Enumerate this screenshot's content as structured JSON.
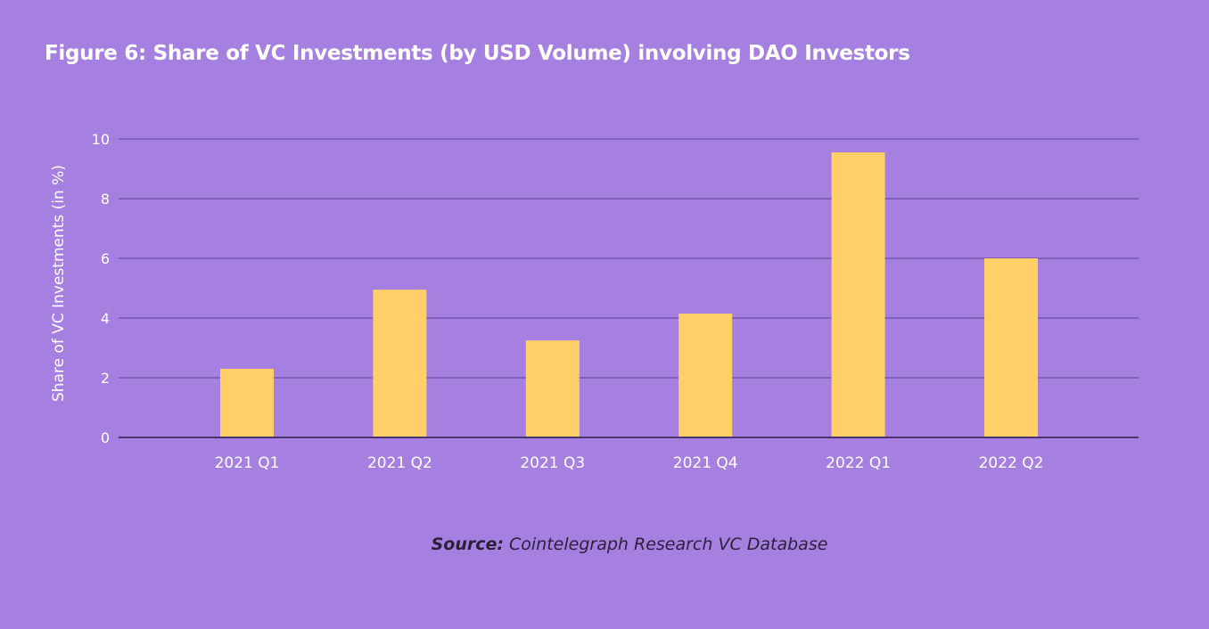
{
  "chart_data": {
    "type": "bar",
    "title": "Figure 6: Share of VC Investments (by USD Volume) involving DAO Investors",
    "xlabel": "",
    "ylabel": "Share of VC Investments (in %)",
    "categories": [
      "2021 Q1",
      "2021 Q2",
      "2021 Q3",
      "2021 Q4",
      "2022 Q1",
      "2022 Q2"
    ],
    "values": [
      2.3,
      4.95,
      3.25,
      4.15,
      9.55,
      6.0
    ],
    "ylim": [
      0,
      10
    ],
    "yticks": [
      0,
      2,
      4,
      6,
      8,
      10
    ],
    "grid": true,
    "legend": "none"
  },
  "source": {
    "label": "Source:",
    "text": "Cointelegraph Research VC Database"
  },
  "colors": {
    "background": "#a580e0",
    "bar": "#ffd068",
    "gridline": "#6a4fa0",
    "axis": "#4a3470",
    "tick_text": "#ffffff"
  }
}
